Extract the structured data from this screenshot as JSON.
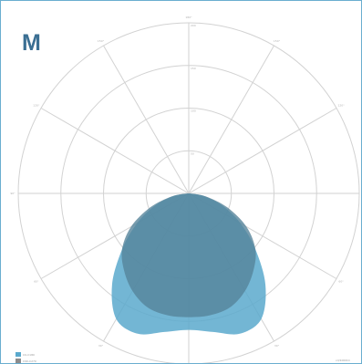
{
  "panel_letter": "M",
  "chart_data": {
    "type": "polar-area",
    "title": "",
    "angle_ticks": [
      "180°",
      "150°",
      "120°",
      "90°",
      "60°",
      "30°",
      "0°",
      "30°",
      "60°",
      "90°",
      "120°",
      "150°"
    ],
    "radius_ticks": [
      "50",
      "100",
      "150",
      "200"
    ],
    "rmax": 200,
    "unit": "cd/1000lm",
    "grid": true,
    "legend_position": "bottom-left",
    "series": [
      {
        "name": "C0-C180",
        "color": "#5aa9cd",
        "angles": [
          0,
          10,
          20,
          30,
          40,
          50,
          60,
          70,
          80,
          90
        ],
        "values": [
          160,
          165,
          175,
          170,
          140,
          102,
          70,
          42,
          18,
          0
        ]
      },
      {
        "name": "C90-C270",
        "color": "#8c8c8c",
        "angles": [
          0,
          10,
          20,
          30,
          40,
          50,
          60,
          70,
          80,
          90
        ],
        "values": [
          145,
          145,
          142,
          132,
          118,
          102,
          78,
          48,
          20,
          0
        ]
      }
    ]
  }
}
